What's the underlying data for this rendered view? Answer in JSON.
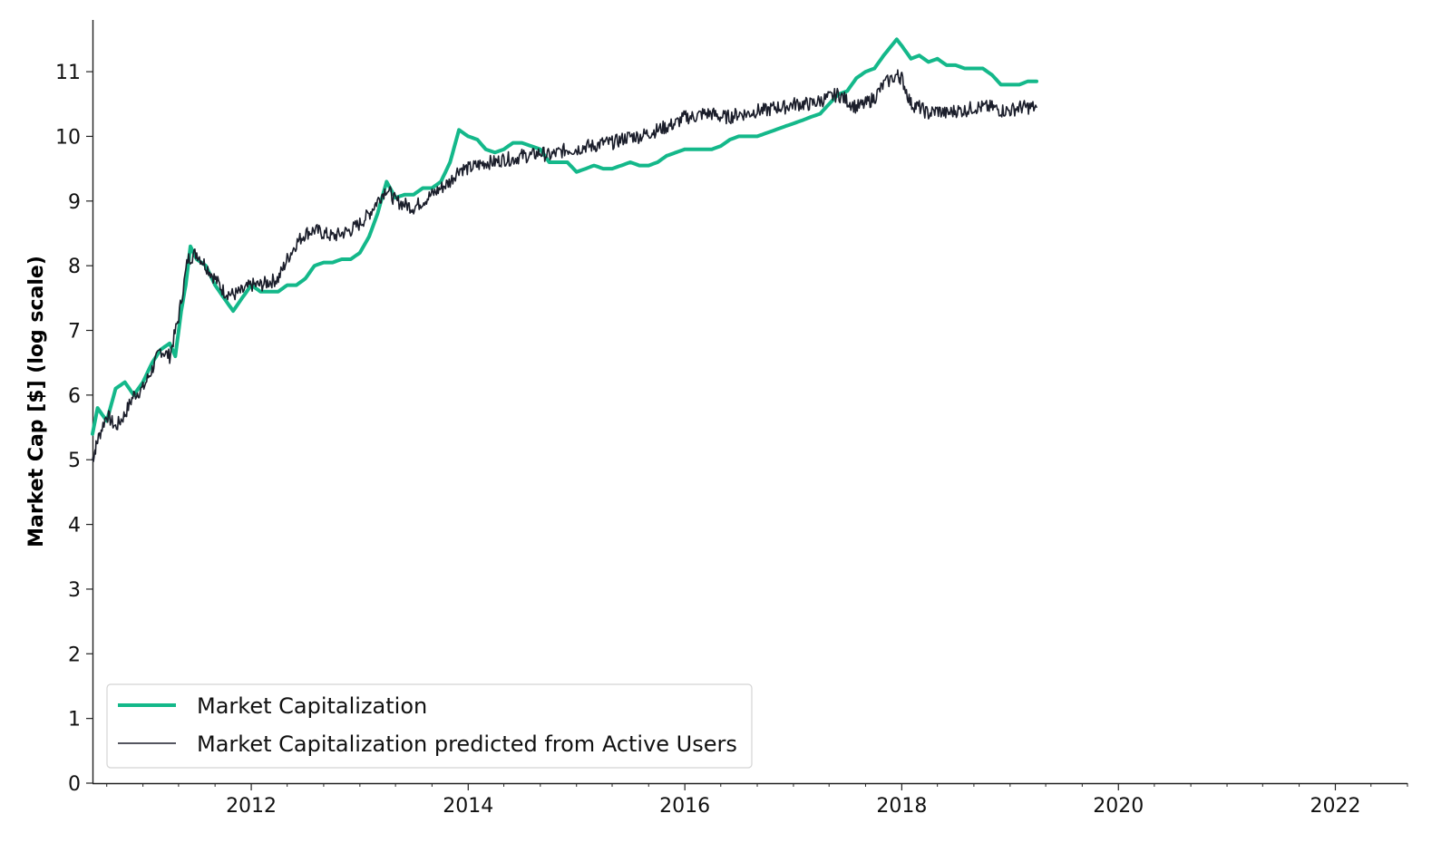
{
  "chart_data": {
    "type": "line",
    "title": "",
    "xlabel": "",
    "ylabel": "Market Cap [$] (log scale)",
    "xlim": [
      "2010-07-15",
      "2022-09-01"
    ],
    "ylim": [
      0,
      11.8
    ],
    "x_ticks": [
      "2012",
      "2014",
      "2016",
      "2018",
      "2020",
      "2022"
    ],
    "y_ticks": [
      "0",
      "1",
      "2",
      "3",
      "4",
      "5",
      "6",
      "7",
      "8",
      "9",
      "10",
      "11"
    ],
    "grid": false,
    "legend_position": "lower-left",
    "colors": {
      "market_cap": "#14b88a",
      "predicted": "#1b1e2b"
    },
    "series": [
      {
        "name": "Market Capitalization",
        "color": "#14b88a",
        "points": [
          [
            "2010-07-15",
            5.4
          ],
          [
            "2010-08-01",
            5.8
          ],
          [
            "2010-09-01",
            5.6
          ],
          [
            "2010-10-01",
            6.1
          ],
          [
            "2010-11-01",
            6.2
          ],
          [
            "2010-12-01",
            6.0
          ],
          [
            "2011-01-01",
            6.2
          ],
          [
            "2011-02-01",
            6.5
          ],
          [
            "2011-03-01",
            6.7
          ],
          [
            "2011-04-01",
            6.8
          ],
          [
            "2011-04-20",
            6.6
          ],
          [
            "2011-05-10",
            7.3
          ],
          [
            "2011-05-25",
            7.7
          ],
          [
            "2011-06-10",
            8.3
          ],
          [
            "2011-07-01",
            8.1
          ],
          [
            "2011-08-01",
            8.0
          ],
          [
            "2011-09-01",
            7.7
          ],
          [
            "2011-10-01",
            7.5
          ],
          [
            "2011-11-01",
            7.3
          ],
          [
            "2011-12-01",
            7.5
          ],
          [
            "2012-01-01",
            7.7
          ],
          [
            "2012-02-01",
            7.6
          ],
          [
            "2012-03-01",
            7.6
          ],
          [
            "2012-04-01",
            7.6
          ],
          [
            "2012-05-01",
            7.7
          ],
          [
            "2012-06-01",
            7.7
          ],
          [
            "2012-07-01",
            7.8
          ],
          [
            "2012-08-01",
            8.0
          ],
          [
            "2012-09-01",
            8.05
          ],
          [
            "2012-10-01",
            8.05
          ],
          [
            "2012-11-01",
            8.1
          ],
          [
            "2012-12-01",
            8.1
          ],
          [
            "2013-01-01",
            8.2
          ],
          [
            "2013-02-01",
            8.45
          ],
          [
            "2013-03-01",
            8.8
          ],
          [
            "2013-04-01",
            9.3
          ],
          [
            "2013-05-01",
            9.05
          ],
          [
            "2013-06-01",
            9.1
          ],
          [
            "2013-07-01",
            9.1
          ],
          [
            "2013-08-01",
            9.2
          ],
          [
            "2013-09-01",
            9.2
          ],
          [
            "2013-10-01",
            9.3
          ],
          [
            "2013-11-01",
            9.6
          ],
          [
            "2013-12-01",
            10.1
          ],
          [
            "2014-01-01",
            10.0
          ],
          [
            "2014-02-01",
            9.95
          ],
          [
            "2014-03-01",
            9.8
          ],
          [
            "2014-04-01",
            9.75
          ],
          [
            "2014-05-01",
            9.8
          ],
          [
            "2014-06-01",
            9.9
          ],
          [
            "2014-07-01",
            9.9
          ],
          [
            "2014-08-01",
            9.85
          ],
          [
            "2014-09-01",
            9.8
          ],
          [
            "2014-10-01",
            9.6
          ],
          [
            "2014-11-01",
            9.6
          ],
          [
            "2014-12-01",
            9.6
          ],
          [
            "2015-01-01",
            9.45
          ],
          [
            "2015-02-01",
            9.5
          ],
          [
            "2015-03-01",
            9.55
          ],
          [
            "2015-04-01",
            9.5
          ],
          [
            "2015-05-01",
            9.5
          ],
          [
            "2015-06-01",
            9.55
          ],
          [
            "2015-07-01",
            9.6
          ],
          [
            "2015-08-01",
            9.55
          ],
          [
            "2015-09-01",
            9.55
          ],
          [
            "2015-10-01",
            9.6
          ],
          [
            "2015-11-01",
            9.7
          ],
          [
            "2015-12-01",
            9.75
          ],
          [
            "2016-01-01",
            9.8
          ],
          [
            "2016-02-01",
            9.8
          ],
          [
            "2016-03-01",
            9.8
          ],
          [
            "2016-04-01",
            9.8
          ],
          [
            "2016-05-01",
            9.85
          ],
          [
            "2016-06-01",
            9.95
          ],
          [
            "2016-07-01",
            10.0
          ],
          [
            "2016-08-01",
            10.0
          ],
          [
            "2016-09-01",
            10.0
          ],
          [
            "2016-10-01",
            10.05
          ],
          [
            "2016-11-01",
            10.1
          ],
          [
            "2016-12-01",
            10.15
          ],
          [
            "2017-01-01",
            10.2
          ],
          [
            "2017-02-01",
            10.25
          ],
          [
            "2017-03-01",
            10.3
          ],
          [
            "2017-04-01",
            10.35
          ],
          [
            "2017-05-01",
            10.5
          ],
          [
            "2017-06-01",
            10.65
          ],
          [
            "2017-07-01",
            10.7
          ],
          [
            "2017-08-01",
            10.9
          ],
          [
            "2017-09-01",
            11.0
          ],
          [
            "2017-10-01",
            11.05
          ],
          [
            "2017-11-01",
            11.25
          ],
          [
            "2017-12-15",
            11.5
          ],
          [
            "2018-01-01",
            11.4
          ],
          [
            "2018-02-01",
            11.2
          ],
          [
            "2018-03-01",
            11.25
          ],
          [
            "2018-04-01",
            11.15
          ],
          [
            "2018-05-01",
            11.2
          ],
          [
            "2018-06-01",
            11.1
          ],
          [
            "2018-07-01",
            11.1
          ],
          [
            "2018-08-01",
            11.05
          ],
          [
            "2018-09-01",
            11.05
          ],
          [
            "2018-10-01",
            11.05
          ],
          [
            "2018-11-01",
            10.95
          ],
          [
            "2018-12-01",
            10.8
          ],
          [
            "2019-01-01",
            10.8
          ],
          [
            "2019-02-01",
            10.8
          ],
          [
            "2019-03-01",
            10.85
          ],
          [
            "2019-03-31",
            10.85
          ]
        ]
      },
      {
        "name": "Market Capitalization predicted from Active Users",
        "color": "#1b1e2b",
        "points": [
          [
            "2010-07-15",
            5.0
          ],
          [
            "2010-08-01",
            5.3
          ],
          [
            "2010-09-01",
            5.7
          ],
          [
            "2010-10-01",
            5.5
          ],
          [
            "2010-11-01",
            5.7
          ],
          [
            "2010-12-01",
            6.0
          ],
          [
            "2011-01-01",
            6.1
          ],
          [
            "2011-02-01",
            6.4
          ],
          [
            "2011-03-01",
            6.7
          ],
          [
            "2011-04-01",
            6.6
          ],
          [
            "2011-05-01",
            7.2
          ],
          [
            "2011-06-01",
            8.1
          ],
          [
            "2011-07-01",
            8.2
          ],
          [
            "2011-08-01",
            8.0
          ],
          [
            "2011-09-01",
            7.8
          ],
          [
            "2011-10-01",
            7.6
          ],
          [
            "2011-11-01",
            7.55
          ],
          [
            "2011-12-01",
            7.6
          ],
          [
            "2012-01-01",
            7.7
          ],
          [
            "2012-02-01",
            7.7
          ],
          [
            "2012-03-01",
            7.75
          ],
          [
            "2012-04-01",
            7.8
          ],
          [
            "2012-05-01",
            8.1
          ],
          [
            "2012-06-01",
            8.35
          ],
          [
            "2012-07-01",
            8.5
          ],
          [
            "2012-08-01",
            8.55
          ],
          [
            "2012-09-01",
            8.5
          ],
          [
            "2012-10-01",
            8.45
          ],
          [
            "2012-11-01",
            8.5
          ],
          [
            "2012-12-01",
            8.55
          ],
          [
            "2013-01-01",
            8.65
          ],
          [
            "2013-02-01",
            8.8
          ],
          [
            "2013-03-01",
            9.0
          ],
          [
            "2013-04-01",
            9.2
          ],
          [
            "2013-05-01",
            9.0
          ],
          [
            "2013-06-01",
            8.95
          ],
          [
            "2013-07-01",
            8.9
          ],
          [
            "2013-08-01",
            9.0
          ],
          [
            "2013-09-01",
            9.1
          ],
          [
            "2013-10-01",
            9.2
          ],
          [
            "2013-11-01",
            9.3
          ],
          [
            "2013-12-01",
            9.5
          ],
          [
            "2014-01-01",
            9.5
          ],
          [
            "2014-02-01",
            9.55
          ],
          [
            "2014-03-01",
            9.6
          ],
          [
            "2014-04-01",
            9.6
          ],
          [
            "2014-05-01",
            9.65
          ],
          [
            "2014-06-01",
            9.65
          ],
          [
            "2014-07-01",
            9.7
          ],
          [
            "2014-08-01",
            9.7
          ],
          [
            "2014-09-01",
            9.75
          ],
          [
            "2014-10-01",
            9.7
          ],
          [
            "2014-11-01",
            9.75
          ],
          [
            "2014-12-01",
            9.8
          ],
          [
            "2015-01-01",
            9.8
          ],
          [
            "2015-02-01",
            9.85
          ],
          [
            "2015-03-01",
            9.85
          ],
          [
            "2015-04-01",
            9.9
          ],
          [
            "2015-05-01",
            9.9
          ],
          [
            "2015-06-01",
            9.95
          ],
          [
            "2015-07-01",
            10.0
          ],
          [
            "2015-08-01",
            10.0
          ],
          [
            "2015-09-01",
            10.05
          ],
          [
            "2015-10-01",
            10.1
          ],
          [
            "2015-11-01",
            10.15
          ],
          [
            "2015-12-01",
            10.2
          ],
          [
            "2016-01-01",
            10.3
          ],
          [
            "2016-02-01",
            10.3
          ],
          [
            "2016-03-01",
            10.35
          ],
          [
            "2016-04-01",
            10.35
          ],
          [
            "2016-05-01",
            10.3
          ],
          [
            "2016-06-01",
            10.3
          ],
          [
            "2016-07-01",
            10.35
          ],
          [
            "2016-08-01",
            10.35
          ],
          [
            "2016-09-01",
            10.4
          ],
          [
            "2016-10-01",
            10.4
          ],
          [
            "2016-11-01",
            10.45
          ],
          [
            "2016-12-01",
            10.45
          ],
          [
            "2017-01-01",
            10.5
          ],
          [
            "2017-02-01",
            10.5
          ],
          [
            "2017-03-01",
            10.5
          ],
          [
            "2017-04-01",
            10.55
          ],
          [
            "2017-05-01",
            10.6
          ],
          [
            "2017-06-01",
            10.65
          ],
          [
            "2017-07-01",
            10.55
          ],
          [
            "2017-08-01",
            10.45
          ],
          [
            "2017-09-01",
            10.5
          ],
          [
            "2017-10-01",
            10.6
          ],
          [
            "2017-11-01",
            10.8
          ],
          [
            "2017-12-15",
            10.95
          ],
          [
            "2018-01-01",
            10.9
          ],
          [
            "2018-02-01",
            10.5
          ],
          [
            "2018-03-01",
            10.45
          ],
          [
            "2018-04-01",
            10.35
          ],
          [
            "2018-05-01",
            10.4
          ],
          [
            "2018-06-01",
            10.35
          ],
          [
            "2018-07-01",
            10.4
          ],
          [
            "2018-08-01",
            10.4
          ],
          [
            "2018-09-01",
            10.45
          ],
          [
            "2018-10-01",
            10.45
          ],
          [
            "2018-11-01",
            10.45
          ],
          [
            "2018-12-01",
            10.4
          ],
          [
            "2019-01-01",
            10.4
          ],
          [
            "2019-02-01",
            10.45
          ],
          [
            "2019-03-01",
            10.45
          ],
          [
            "2019-03-31",
            10.45
          ]
        ]
      }
    ]
  }
}
